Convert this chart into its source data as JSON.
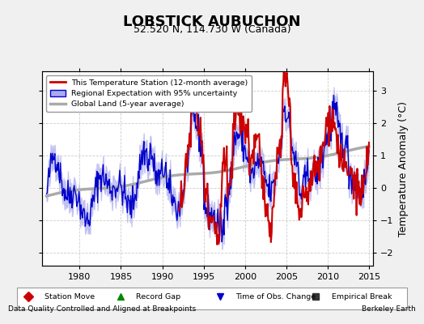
{
  "title": "LOBSTICK AUBUCHON",
  "subtitle": "52.520 N, 114.730 W (Canada)",
  "xlabel_left": "Data Quality Controlled and Aligned at Breakpoints",
  "xlabel_right": "Berkeley Earth",
  "ylabel": "Temperature Anomaly (°C)",
  "xlim": [
    1975.5,
    2015.5
  ],
  "ylim": [
    -2.4,
    3.6
  ],
  "yticks": [
    -2,
    -1,
    0,
    1,
    2,
    3
  ],
  "xticks": [
    1980,
    1985,
    1990,
    1995,
    2000,
    2005,
    2010,
    2015
  ],
  "bg_color": "#f0f0f0",
  "plot_bg_color": "#ffffff",
  "grid_color": "#cccccc",
  "red_color": "#cc0000",
  "blue_color": "#0000cc",
  "blue_fill_color": "#aaaaee",
  "gray_color": "#aaaaaa",
  "legend_items": [
    {
      "label": "This Temperature Station (12-month average)",
      "color": "#cc0000",
      "lw": 2.0
    },
    {
      "label": "Regional Expectation with 95% uncertainty",
      "color": "#0000cc",
      "lw": 1.5
    },
    {
      "label": "Global Land (5-year average)",
      "color": "#aaaaaa",
      "lw": 2.5
    }
  ],
  "bottom_legend_items": [
    {
      "label": "Station Move",
      "marker": "D",
      "color": "#cc0000"
    },
    {
      "label": "Record Gap",
      "marker": "^",
      "color": "#008800"
    },
    {
      "label": "Time of Obs. Change",
      "marker": "v",
      "color": "#0000cc"
    },
    {
      "label": "Empirical Break",
      "marker": "s",
      "color": "#333333"
    }
  ]
}
